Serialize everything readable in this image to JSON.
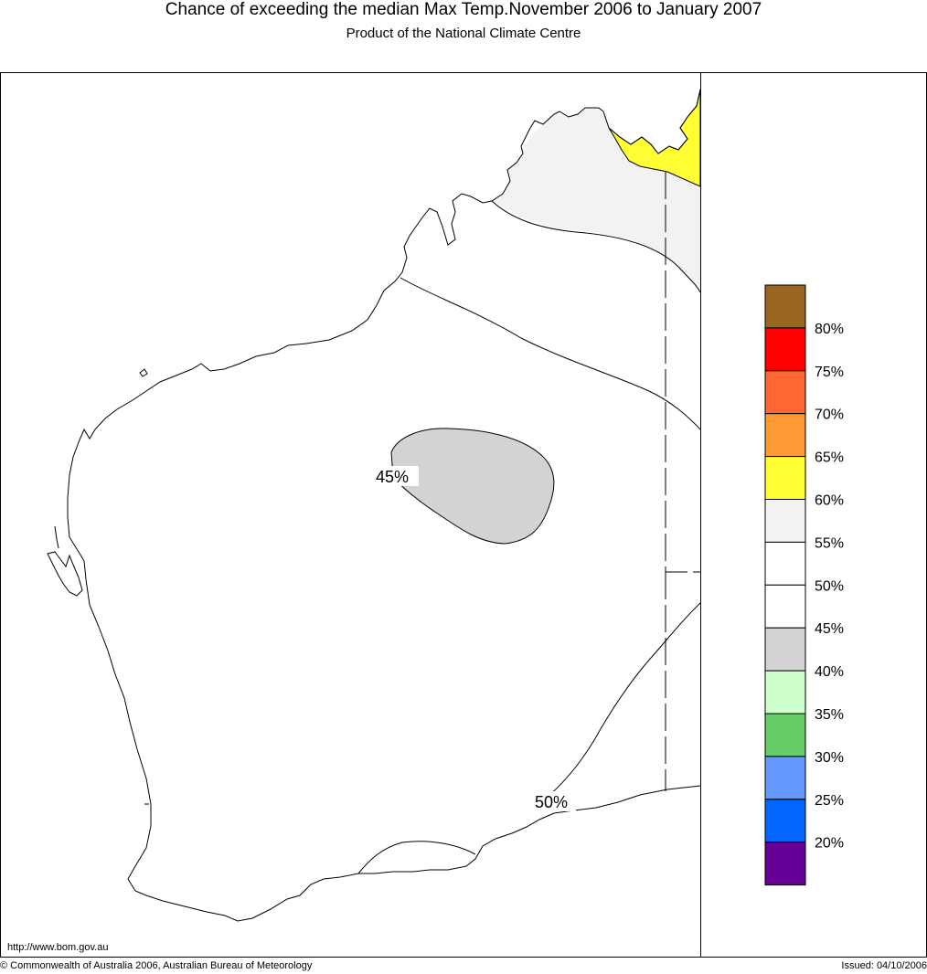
{
  "header": {
    "title": "Chance of exceeding the median Max Temp.November 2006 to January 2007",
    "subtitle": "Product of the National Climate Centre"
  },
  "map": {
    "contour_labels": [
      "45%",
      "50%"
    ],
    "colors": {
      "yellow_region": "#ffff33",
      "light_grey_region": "#f2f2f2",
      "grey_region": "#d3d3d3",
      "outline": "#000000"
    }
  },
  "legend": {
    "swatches": [
      {
        "color": "#996622"
      },
      {
        "color": "#ff0000"
      },
      {
        "color": "#ff6633"
      },
      {
        "color": "#ff9933"
      },
      {
        "color": "#ffff33"
      },
      {
        "color": "#f2f2f2"
      },
      {
        "color": "#ffffff"
      },
      {
        "color": "#ffffff"
      },
      {
        "color": "#d3d3d3"
      },
      {
        "color": "#ccffcc"
      },
      {
        "color": "#66cc66"
      },
      {
        "color": "#6699ff"
      },
      {
        "color": "#0066ff"
      },
      {
        "color": "#660099"
      }
    ],
    "labels": [
      "80%",
      "75%",
      "70%",
      "65%",
      "60%",
      "55%",
      "50%",
      "45%",
      "40%",
      "35%",
      "30%",
      "25%",
      "20%"
    ]
  },
  "footer": {
    "url": "http://www.bom.gov.au",
    "copyright": "© Commonwealth of Australia 2006, Australian Bureau of Meteorology",
    "issued": "Issued: 04/10/2006"
  }
}
